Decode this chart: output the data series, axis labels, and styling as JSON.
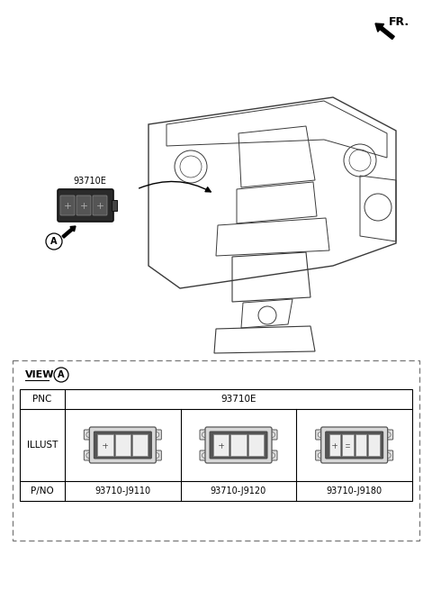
{
  "bg_color": "#ffffff",
  "fr_label": "FR.",
  "part_number_label": "93710E",
  "view_label": "VIEW",
  "view_circle_label": "A",
  "pnc_label": "PNC",
  "illust_label": "ILLUST",
  "pno_label": "P/NO",
  "part_numbers": [
    "93710-J9110",
    "93710-J9120",
    "93710-J9180"
  ],
  "component_label": "93710E",
  "circle_label": "A",
  "num_buttons": [
    3,
    3,
    4
  ]
}
